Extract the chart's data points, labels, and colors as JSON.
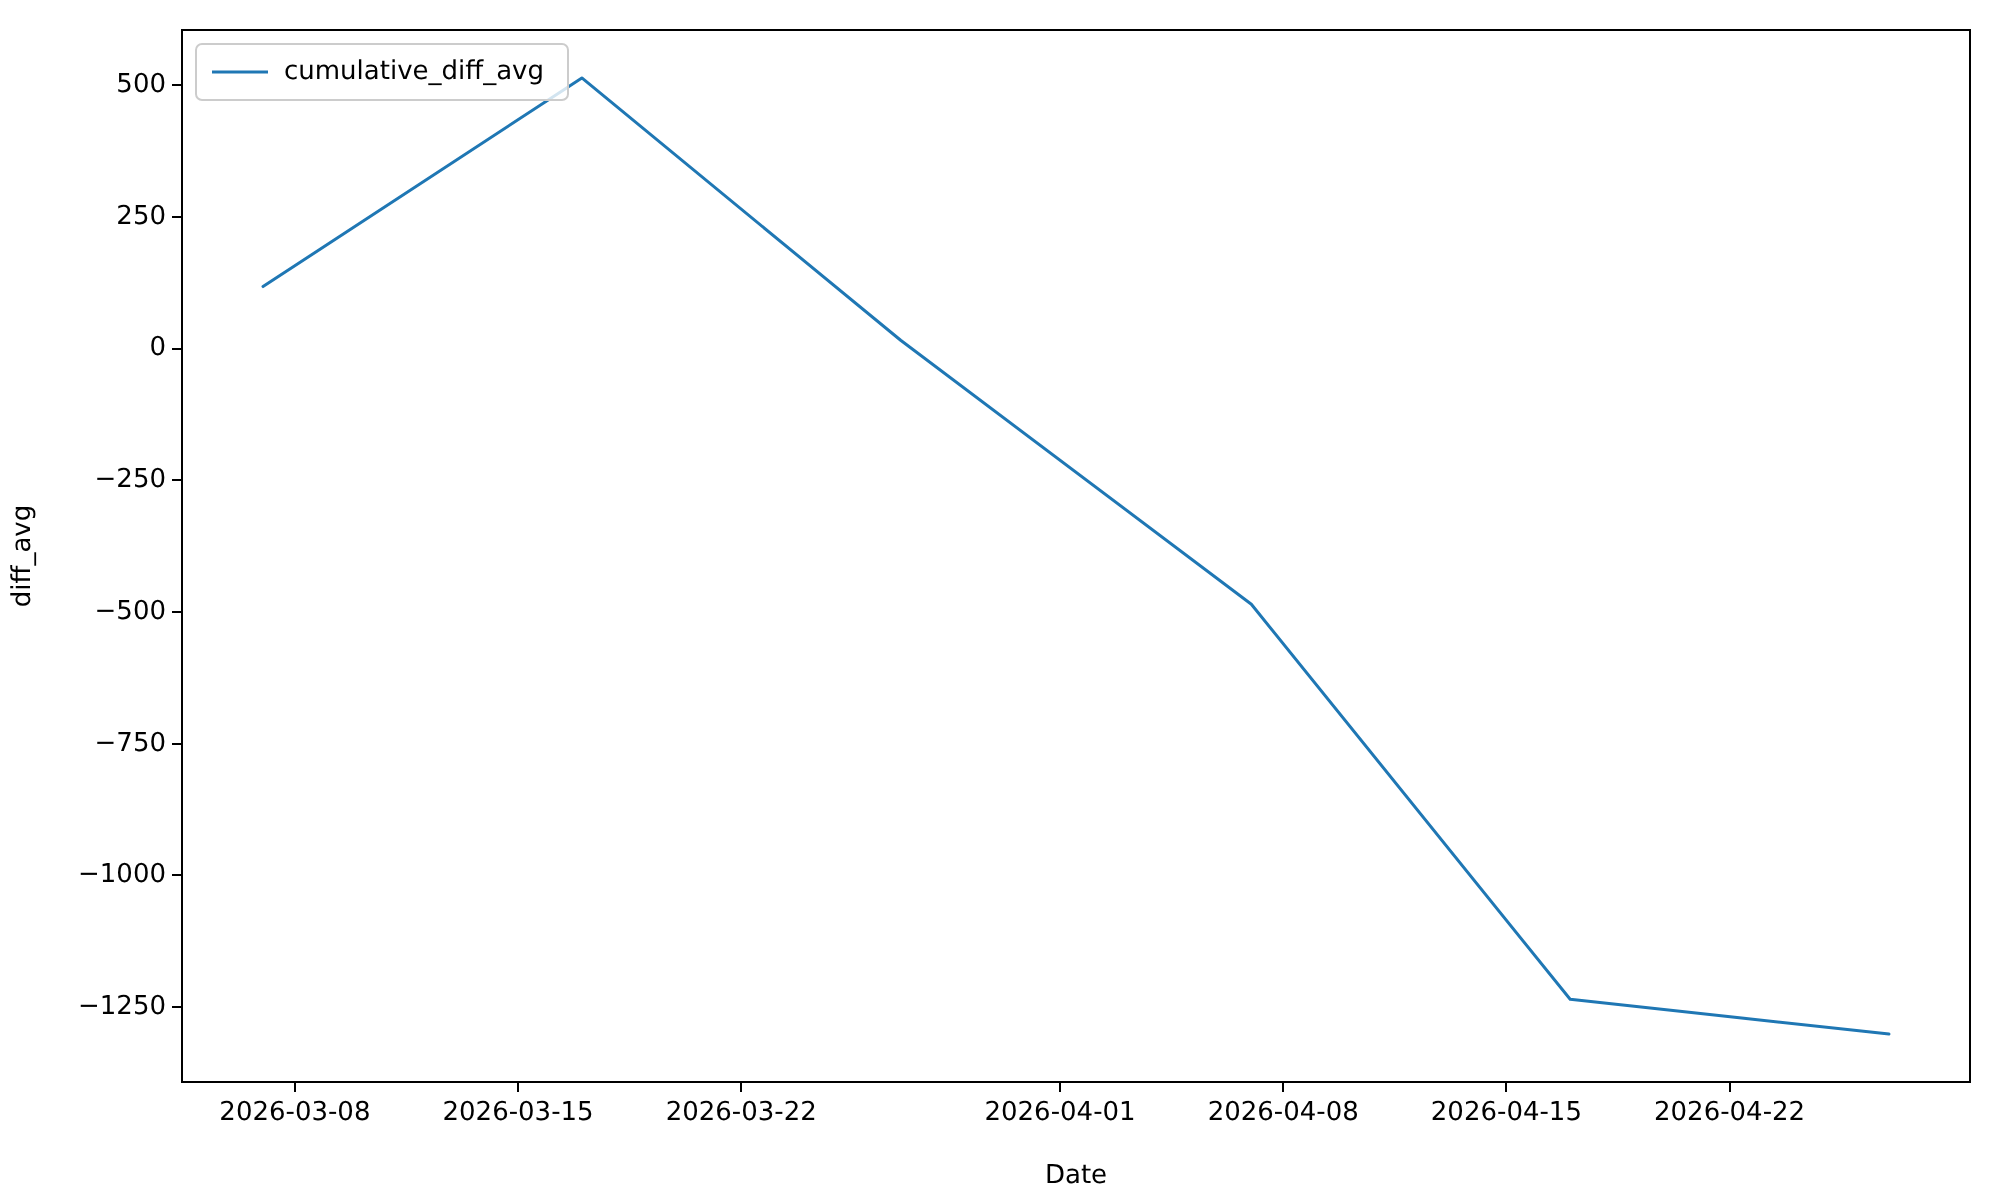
{
  "chart_data": {
    "type": "line",
    "xlabel": "Date",
    "ylabel": "diff_avg",
    "legend": "top left",
    "x": [
      "2026-03-07",
      "2026-03-17",
      "2026-03-27",
      "2026-04-07",
      "2026-04-17",
      "2026-04-27"
    ],
    "series": [
      {
        "name": "cumulative_diff_avg",
        "color": "#1f77b4",
        "values": [
          118,
          514,
          16,
          -485,
          -1235,
          -1301
        ]
      }
    ],
    "xlim": [
      "2026-03-04T11:00",
      "2026-04-29T13:00"
    ],
    "xticks": [
      "2026-03-08",
      "2026-03-15",
      "2026-03-22",
      "2026-04-01",
      "2026-04-08",
      "2026-04-15",
      "2026-04-22"
    ],
    "ylim": [
      -1392,
      605
    ],
    "yticks": [
      -1250,
      -1000,
      -750,
      -500,
      -250,
      0,
      250,
      500
    ]
  }
}
